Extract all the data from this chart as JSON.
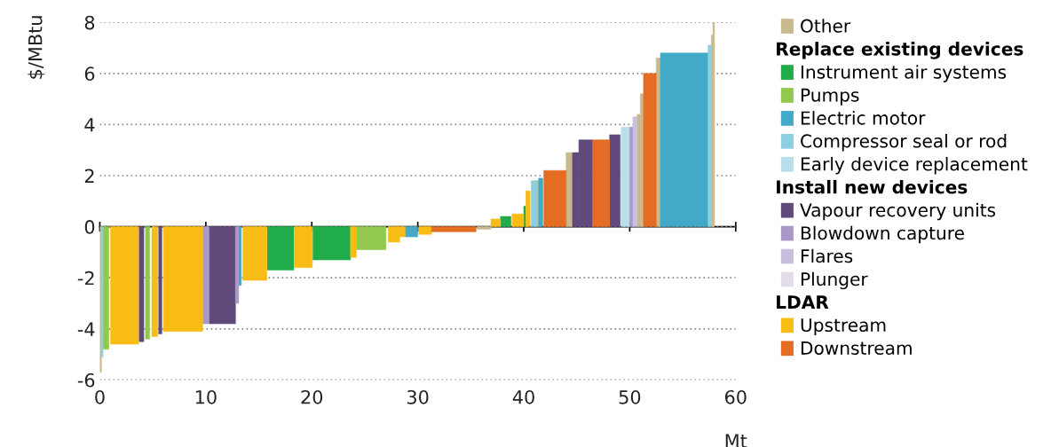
{
  "chart_data": {
    "type": "area",
    "ylabel": "$/MBtu",
    "xlabel": "Mt",
    "xlim": [
      0,
      60
    ],
    "xticks": [
      0,
      10,
      20,
      30,
      40,
      50,
      60
    ],
    "ylim": [
      -6,
      8
    ],
    "yticks": [
      -6,
      -4,
      -2,
      0,
      2,
      4,
      6,
      8
    ],
    "grid": "y",
    "legend": "right",
    "annotations": [
      "Replace existing devices",
      "Install new devices",
      "LDAR"
    ],
    "series": [
      {
        "name": "Other",
        "color": "#c8b98f",
        "x": [
          0,
          0.15,
          null,
          35.6,
          36.9,
          null,
          41.2,
          41.4,
          null,
          44.0,
          44.6,
          null,
          50.7,
          51.0,
          null,
          51.0,
          51.3,
          null,
          52.5,
          52.9,
          null,
          57.7,
          57.85,
          null,
          57.85,
          58.0
        ],
        "values": [
          -5.7,
          -5.7,
          null,
          -0.1,
          -0.1,
          null,
          1.8,
          1.8,
          null,
          2.9,
          2.9,
          null,
          4.4,
          4.4,
          null,
          5.2,
          5.2,
          null,
          6.6,
          6.6,
          null,
          7.5,
          7.5,
          null,
          8.0,
          8.0
        ]
      },
      {
        "name": "Instrument air systems",
        "color": "#20ac4b",
        "x": [
          15.8,
          18.3,
          null,
          20.1,
          23.65,
          null,
          37.8,
          38.8,
          null,
          40.0,
          40.2
        ],
        "values": [
          -1.7,
          -1.7,
          null,
          -1.3,
          -1.3,
          null,
          0.4,
          0.4,
          null,
          0.8,
          0.8
        ]
      },
      {
        "name": "Pumps",
        "color": "#92c84e",
        "x": [
          0.3,
          0.85,
          null,
          4.3,
          4.7,
          null,
          24.2,
          27.0
        ],
        "values": [
          -4.8,
          -4.8,
          null,
          -4.4,
          -4.4,
          null,
          -0.9,
          -0.9
        ]
      },
      {
        "name": "Electric motor",
        "color": "#42aac6",
        "x": [
          13.1,
          13.35,
          null,
          28.8,
          30.0,
          null,
          41.4,
          41.8,
          null,
          52.9,
          57.4
        ],
        "values": [
          -2.3,
          -2.3,
          null,
          -0.4,
          -0.4,
          null,
          1.9,
          1.9,
          null,
          6.8,
          6.8
        ]
      },
      {
        "name": "Compressor seal or rod",
        "color": "#8ccfe0",
        "x": [
          0.15,
          0.3,
          null,
          40.7,
          41.2,
          null,
          57.4,
          57.7
        ],
        "values": [
          -5.1,
          -5.1,
          null,
          1.8,
          1.8,
          null,
          7.1,
          7.1
        ]
      },
      {
        "name": "Early device replacement",
        "color": "#b9e0ea",
        "x": [
          49.2,
          50.0
        ],
        "values": [
          3.9,
          3.9
        ]
      },
      {
        "name": "Vapour recovery units",
        "color": "#604a7b",
        "x": [
          3.7,
          4.15,
          null,
          5.55,
          5.85,
          null,
          10.3,
          12.8,
          null,
          44.6,
          45.2,
          null,
          45.2,
          46.5,
          null,
          48.1,
          49.1
        ],
        "values": [
          -4.5,
          -4.5,
          null,
          -4.2,
          -4.2,
          null,
          -3.8,
          -3.8,
          null,
          2.9,
          2.9,
          null,
          3.4,
          3.4,
          null,
          3.6,
          3.6
        ]
      },
      {
        "name": "Blowdown capture",
        "color": "#a998c8",
        "x": [
          9.7,
          10.3,
          null,
          12.8,
          13.1,
          null,
          50.0,
          50.3
        ],
        "values": [
          -3.8,
          -3.8,
          null,
          -3.0,
          -3.0,
          null,
          3.9,
          3.9
        ]
      },
      {
        "name": "Flares",
        "color": "#c9bfdc",
        "x": [
          50.3,
          50.7
        ],
        "values": [
          4.3,
          4.3
        ]
      },
      {
        "name": "Plunger",
        "color": "#e4dcea"
      },
      {
        "name": "Upstream",
        "color": "#f9bc15",
        "x": [
          1.0,
          3.65,
          null,
          4.9,
          5.45,
          null,
          6.0,
          9.7,
          null,
          13.5,
          15.75,
          null,
          18.35,
          20.05,
          null,
          23.65,
          24.2,
          null,
          27.2,
          28.3,
          null,
          28.3,
          28.8,
          null,
          30.1,
          31.3,
          null,
          36.9,
          37.8,
          null,
          38.9,
          40.0,
          null,
          40.2,
          40.6
        ],
        "values": [
          -4.6,
          -4.6,
          null,
          -4.3,
          -4.3,
          null,
          -4.1,
          -4.1,
          null,
          -2.1,
          -2.1,
          null,
          -1.6,
          -1.6,
          null,
          -1.2,
          -1.2,
          null,
          -0.6,
          -0.6,
          null,
          -0.4,
          -0.4,
          null,
          -0.3,
          -0.3,
          null,
          0.3,
          0.3,
          null,
          0.5,
          0.5,
          null,
          1.4,
          1.4
        ]
      },
      {
        "name": "Downstream",
        "color": "#e46c23",
        "x": [
          31.3,
          35.5,
          null,
          41.9,
          44.0,
          null,
          46.5,
          48.1,
          null,
          51.3,
          52.5
        ],
        "values": [
          -0.2,
          -0.2,
          null,
          2.2,
          2.2,
          null,
          3.4,
          3.4,
          null,
          6.0,
          6.0
        ]
      }
    ]
  }
}
